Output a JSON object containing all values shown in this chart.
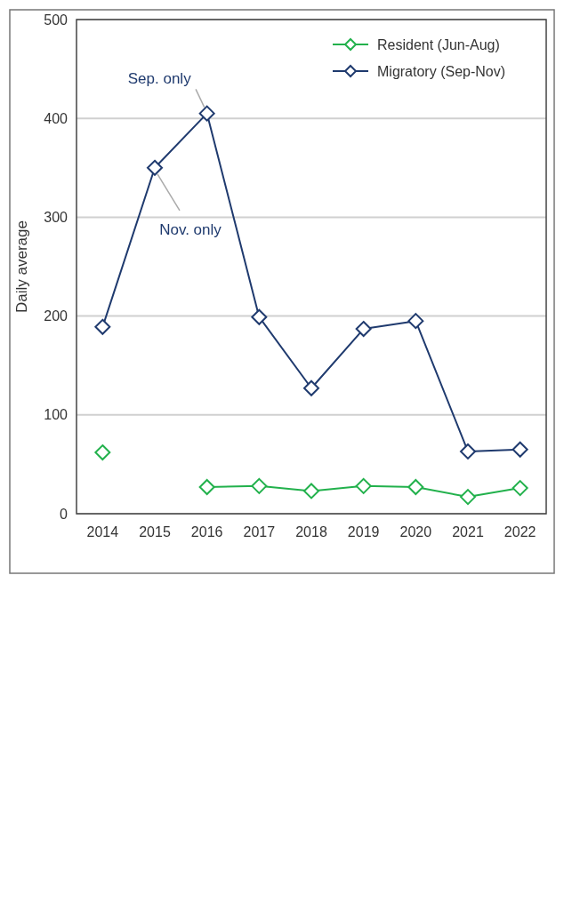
{
  "chart_data": {
    "type": "line",
    "ylabel": "Daily average",
    "categories": [
      "2014",
      "2015",
      "2016",
      "2017",
      "2018",
      "2019",
      "2020",
      "2021",
      "2022"
    ],
    "series": [
      {
        "name": "Resident (Jun-Aug)",
        "color": "#22b14c",
        "values": [
          62,
          null,
          27,
          28,
          23,
          28,
          27,
          17,
          26
        ]
      },
      {
        "name": "Migratory (Sep-Nov)",
        "color": "#1f3a6e",
        "values": [
          189,
          350,
          405,
          199,
          127,
          187,
          195,
          63,
          65
        ]
      }
    ],
    "ylim": [
      0,
      500
    ],
    "yticks": [
      0,
      100,
      200,
      300,
      400,
      500
    ],
    "grid": "y",
    "legend": "top right",
    "marker": "diamond",
    "line_style": "solid",
    "annotations": [
      {
        "text": "Sep. only",
        "x": "2016",
        "y": 405
      },
      {
        "text": "Nov. only",
        "x": "2015",
        "y": 350
      }
    ]
  }
}
